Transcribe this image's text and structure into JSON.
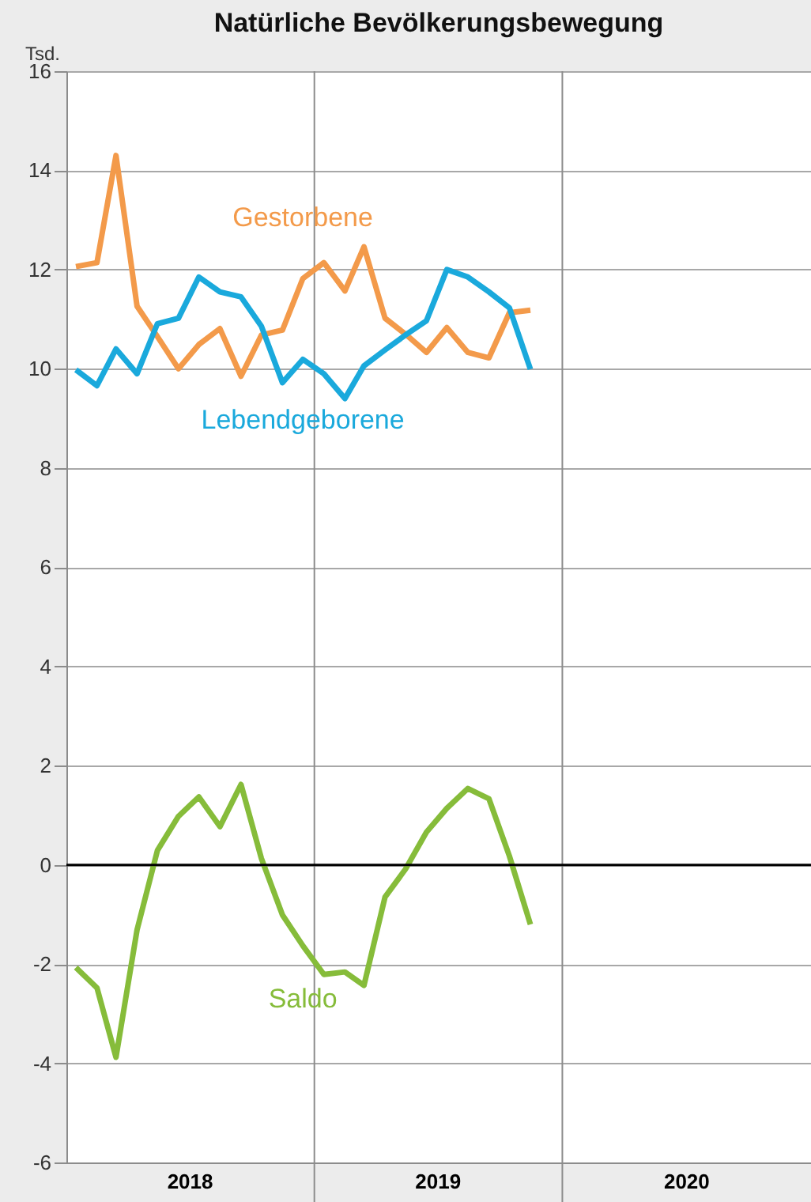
{
  "chart_data": {
    "type": "line",
    "title": "Natürliche Bevölkerungsbewegung",
    "ylabel": "Tsd.",
    "x": [
      "2018-01-15",
      "2018-02-15",
      "2018-03-15",
      "2018-04-15",
      "2018-05-15",
      "2018-06-15",
      "2018-07-15",
      "2018-08-15",
      "2018-09-15",
      "2018-10-15",
      "2018-11-15",
      "2018-12-15",
      "2019-01-15",
      "2019-02-15",
      "2019-03-15",
      "2019-04-15",
      "2019-05-15",
      "2019-06-15",
      "2019-07-15",
      "2019-08-15",
      "2019-09-15",
      "2019-10-15",
      "2019-11-15"
    ],
    "series": [
      {
        "name": "Gestorbene",
        "color": "#f39a4a",
        "values": [
          12.06,
          12.14,
          14.3,
          11.26,
          10.65,
          10.0,
          10.49,
          10.81,
          9.85,
          10.68,
          10.78,
          11.82,
          12.14,
          11.57,
          12.46,
          11.02,
          10.7,
          10.33,
          10.83,
          10.33,
          10.22,
          11.13,
          11.18
        ]
      },
      {
        "name": "Lebendgeborene",
        "color": "#1aa9dc",
        "values": [
          9.98,
          9.66,
          10.4,
          9.9,
          10.91,
          11.02,
          11.85,
          11.55,
          11.45,
          10.86,
          9.72,
          10.19,
          9.9,
          9.4,
          10.06,
          10.38,
          10.68,
          10.97,
          12.0,
          11.85,
          11.55,
          11.23,
          9.99
        ]
      },
      {
        "name": "Saldo",
        "color": "#86bc3a",
        "values": [
          -2.07,
          -2.48,
          -3.88,
          -1.31,
          0.29,
          0.98,
          1.37,
          0.77,
          1.62,
          0.13,
          -1.01,
          -1.63,
          -2.21,
          -2.16,
          -2.43,
          -0.65,
          -0.09,
          0.66,
          1.14,
          1.54,
          1.33,
          0.18,
          -1.2
        ]
      }
    ],
    "xlim": [
      "2018-01-01",
      "2021-01-01"
    ],
    "xticks": [
      {
        "value": "2018-07-01",
        "label": "2018"
      },
      {
        "value": "2019-01-01",
        "label": null
      },
      {
        "value": "2019-07-01",
        "label": "2019"
      },
      {
        "value": "2020-01-01",
        "label": null
      },
      {
        "value": "2020-07-01",
        "label": "2020"
      }
    ],
    "ylim": [
      -6,
      16
    ],
    "yticks": [
      -6,
      -4,
      -2,
      0,
      2,
      4,
      6,
      8,
      10,
      12,
      14,
      16
    ],
    "ref_lines": [
      {
        "axis": "y",
        "value": 0,
        "color": "#000000"
      }
    ],
    "grid": true,
    "marker": "none",
    "line_style": "solid"
  }
}
